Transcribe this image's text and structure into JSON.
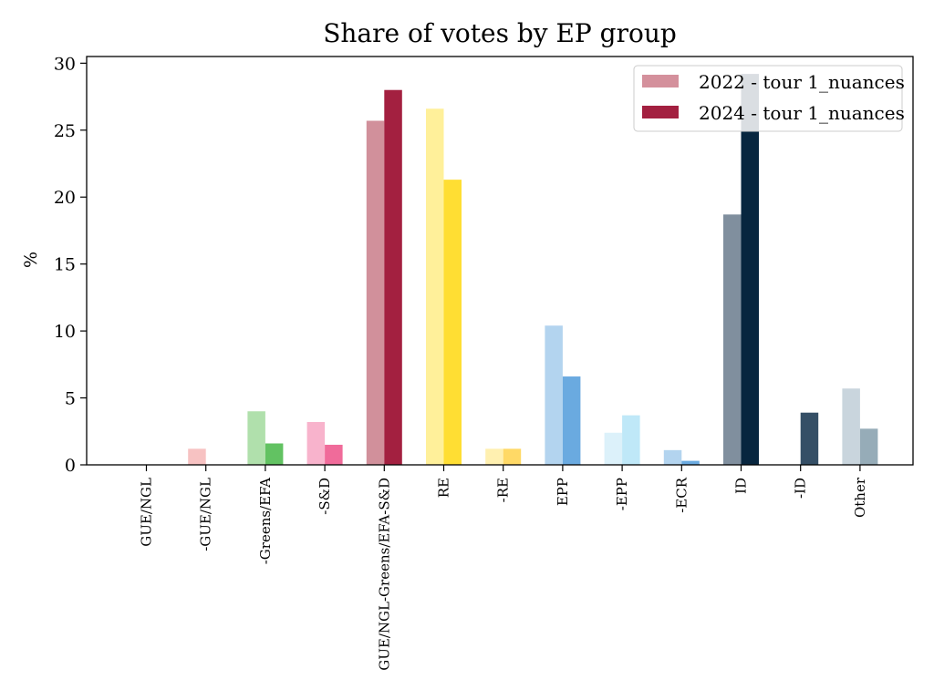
{
  "chart_data": {
    "type": "bar",
    "title": "Share of votes by EP group",
    "xlabel": "",
    "ylabel": "%",
    "ylim": [
      0,
      30.5
    ],
    "yticks": [
      0,
      5,
      10,
      15,
      20,
      25,
      30
    ],
    "grid": false,
    "legend_position": "top-right",
    "categories": [
      "GUE/NGL",
      "-GUE/NGL",
      "-Greens/EFA",
      "-S&D",
      "GUE/NGL-Greens/EFA-S&D",
      "RE",
      "-RE",
      "EPP",
      "-EPP",
      "-ECR",
      "ID",
      "-ID",
      "Other"
    ],
    "series": [
      {
        "name": "2022 - tour 1_nuances",
        "legend_color": "#d4909c",
        "values": [
          0,
          1.2,
          4.0,
          3.2,
          25.7,
          26.6,
          1.2,
          10.4,
          2.4,
          1.1,
          18.7,
          0,
          5.7
        ],
        "colors": [
          "#f5b8b8",
          "#f7c2c2",
          "#b0e0ac",
          "#f8b3cc",
          "#d1909b",
          "#fff09a",
          "#fff0b0",
          "#b3d4ef",
          "#dcf1fa",
          "#b3d4ef",
          "#808f9e",
          "#8c9aa8",
          "#c9d5dd"
        ]
      },
      {
        "name": "2024 - tour 1_nuances",
        "legend_color": "#a32040",
        "values": [
          0,
          0,
          1.6,
          1.5,
          28.0,
          21.3,
          1.2,
          6.6,
          3.7,
          0.3,
          29.2,
          3.9,
          2.7
        ],
        "colors": [
          "#e05a5a",
          "#ef8a8a",
          "#62c262",
          "#f06b9a",
          "#a32040",
          "#ffde33",
          "#ffd966",
          "#6aaae0",
          "#bfe8f8",
          "#6aaae0",
          "#08263f",
          "#354f66",
          "#96acb8"
        ]
      }
    ]
  }
}
